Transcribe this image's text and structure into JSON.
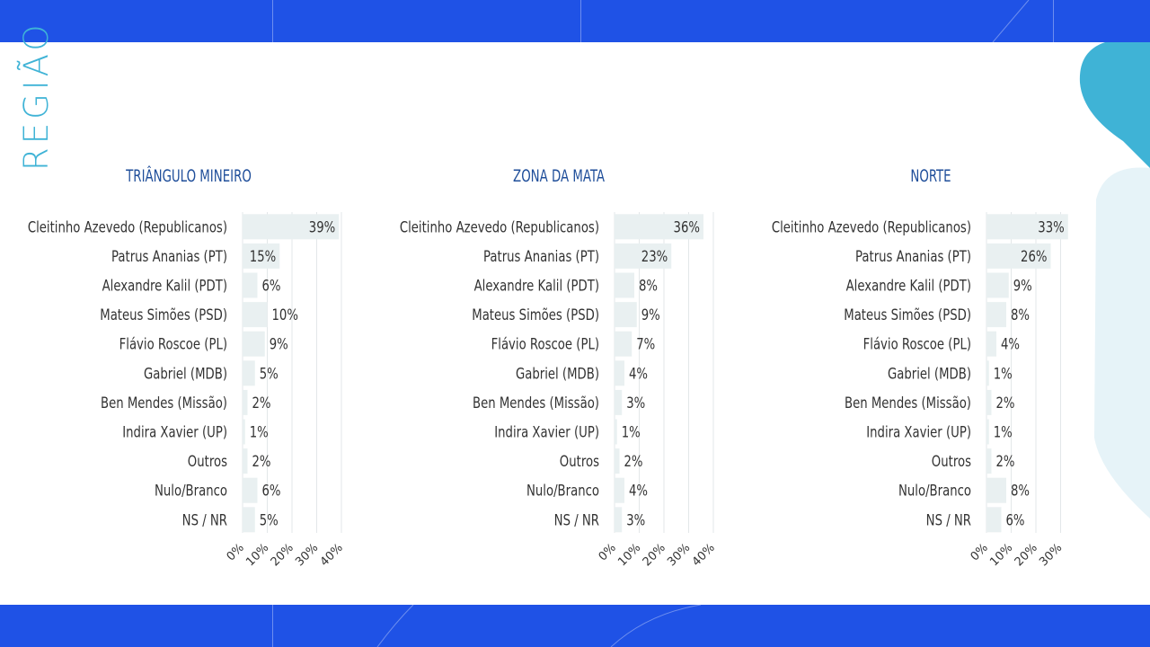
{
  "page": {
    "section_title": "REGIÃO",
    "colors": {
      "band": "#1f52e6",
      "accent": "#3fb3d6",
      "bar": "#e9f0f1",
      "title": "#1f4e9a",
      "text": "#333333"
    }
  },
  "chart_data": [
    {
      "type": "bar",
      "orientation": "horizontal",
      "title": "TRIÂNGULO MINEIRO",
      "categories": [
        "Cleitinho Azevedo (Republicanos)",
        "Patrus Ananias (PT)",
        "Alexandre Kalil (PDT)",
        "Mateus Simões (PSD)",
        "Flávio Roscoe (PL)",
        "Gabriel (MDB)",
        "Ben Mendes (Missão)",
        "Indira Xavier (UP)",
        "Outros",
        "Nulo/Branco",
        "NS / NR"
      ],
      "values": [
        39,
        15,
        6,
        10,
        9,
        5,
        2,
        1,
        2,
        6,
        5
      ],
      "value_labels": [
        "39%",
        "15%",
        "6%",
        "10%",
        "9%",
        "5%",
        "2%",
        "1%",
        "2%",
        "6%",
        "5%"
      ],
      "xticks": [
        "0%",
        "10%",
        "20%",
        "30%",
        "40%"
      ],
      "xlim": [
        0,
        40
      ],
      "grid": true
    },
    {
      "type": "bar",
      "orientation": "horizontal",
      "title": "ZONA DA MATA",
      "categories": [
        "Cleitinho Azevedo (Republicanos)",
        "Patrus Ananias (PT)",
        "Alexandre Kalil (PDT)",
        "Mateus Simões (PSD)",
        "Flávio Roscoe (PL)",
        "Gabriel (MDB)",
        "Ben Mendes (Missão)",
        "Indira Xavier (UP)",
        "Outros",
        "Nulo/Branco",
        "NS / NR"
      ],
      "values": [
        36,
        23,
        8,
        9,
        7,
        4,
        3,
        1,
        2,
        4,
        3
      ],
      "value_labels": [
        "36%",
        "23%",
        "8%",
        "9%",
        "7%",
        "4%",
        "3%",
        "1%",
        "2%",
        "4%",
        "3%"
      ],
      "xticks": [
        "0%",
        "10%",
        "20%",
        "30%",
        "40%"
      ],
      "xlim": [
        0,
        40
      ],
      "grid": true
    },
    {
      "type": "bar",
      "orientation": "horizontal",
      "title": "NORTE",
      "categories": [
        "Cleitinho Azevedo (Republicanos)",
        "Patrus Ananias (PT)",
        "Alexandre Kalil (PDT)",
        "Mateus Simões (PSD)",
        "Flávio Roscoe (PL)",
        "Gabriel (MDB)",
        "Ben Mendes (Missão)",
        "Indira Xavier (UP)",
        "Outros",
        "Nulo/Branco",
        "NS / NR"
      ],
      "values": [
        33,
        26,
        9,
        8,
        4,
        1,
        2,
        1,
        2,
        8,
        6
      ],
      "value_labels": [
        "33%",
        "26%",
        "9%",
        "8%",
        "4%",
        "1%",
        "2%",
        "1%",
        "2%",
        "8%",
        "6%"
      ],
      "xticks": [
        "0%",
        "10%",
        "20%",
        "30%"
      ],
      "xlim": [
        0,
        40
      ],
      "grid": true
    }
  ]
}
